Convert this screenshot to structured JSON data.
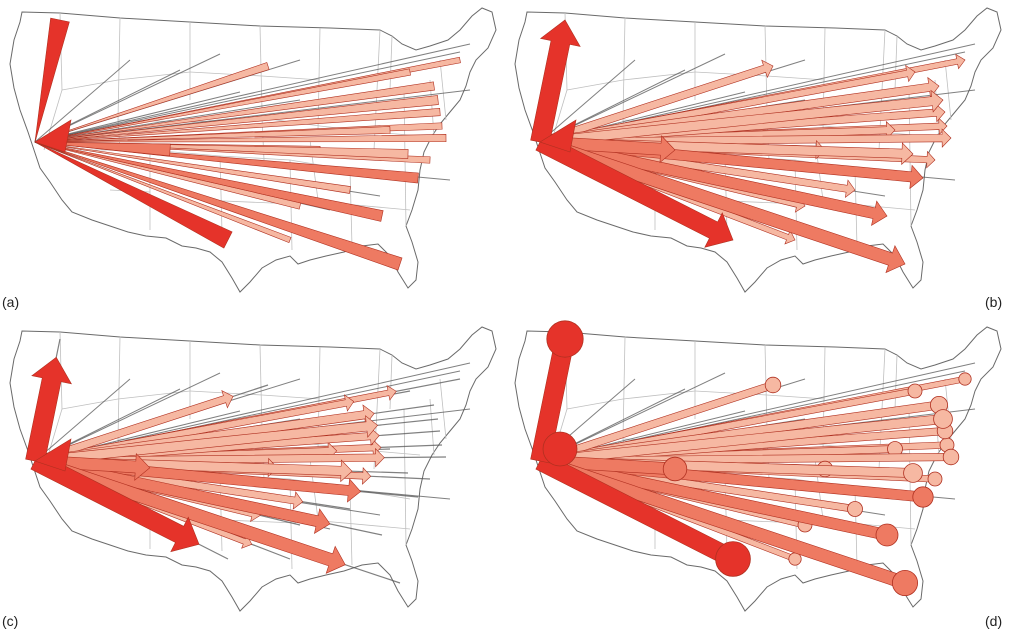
{
  "panels": [
    {
      "id": "a",
      "label": "(a)",
      "style": "tapered"
    },
    {
      "id": "b",
      "label": "(b)",
      "style": "arrow"
    },
    {
      "id": "c",
      "label": "(c)",
      "style": "arrow-short"
    },
    {
      "id": "d",
      "label": "(d)",
      "style": "circle"
    }
  ],
  "colors": {
    "strong": "#e5332a",
    "medium": "#ee7a62",
    "light": "#f6b8a2",
    "line": "#555555",
    "outline": "#6a6a6a",
    "border": "#bfbfbf"
  }
}
